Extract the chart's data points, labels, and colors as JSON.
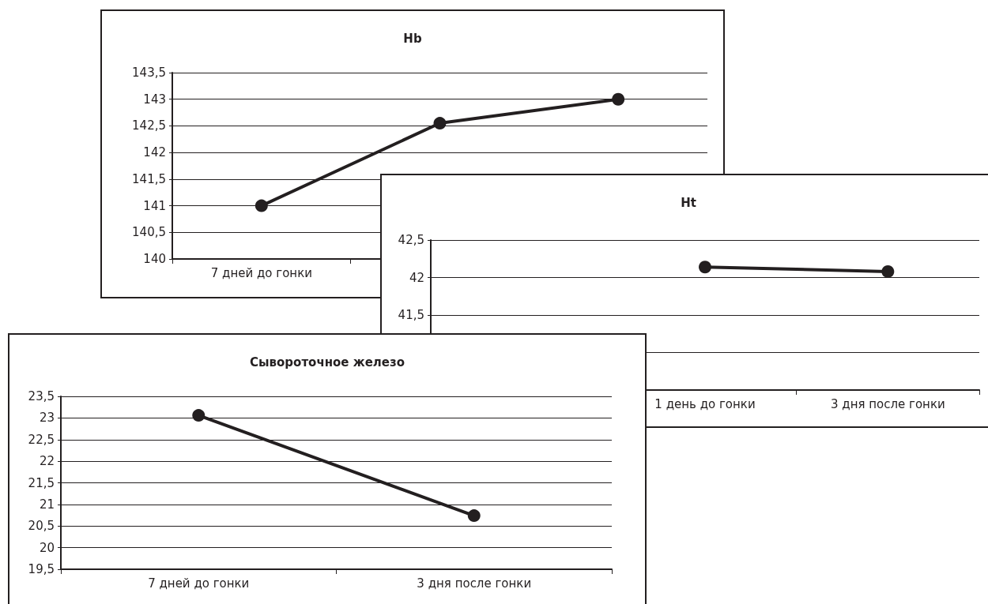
{
  "chart_data": [
    {
      "type": "line",
      "title": "Hb",
      "categories": [
        "7 дней до гонки",
        null,
        null
      ],
      "series": [
        {
          "color": "#231f20",
          "values": [
            141,
            142.55,
            143
          ]
        }
      ],
      "ylim": [
        140,
        143.5
      ],
      "yticks": [
        140,
        {
          "value": 140.5,
          "label": "140,5"
        },
        141,
        {
          "value": 141.5,
          "label": "141,5"
        },
        142,
        {
          "value": 142.5,
          "label": "142,5"
        },
        143,
        {
          "value": 143.5,
          "label": "143,5"
        }
      ],
      "grid": "y",
      "marker": "circle",
      "line_style": "solid"
    },
    {
      "type": "line",
      "title": "Ht",
      "categories": [
        null,
        "1 день до гонки",
        "3 дня после гонки"
      ],
      "series": [
        {
          "color": "#231f20",
          "values": [
            null,
            42.14,
            42.08
          ]
        }
      ],
      "ylim": [
        40.5,
        42.5
      ],
      "yticks": [
        {
          "value": 40.5,
          "label": null
        },
        {
          "value": 41,
          "label": null
        },
        {
          "value": 41.5,
          "label": "41,5"
        },
        42,
        {
          "value": 42.5,
          "label": "42,5"
        }
      ],
      "grid": "y",
      "marker": "circle",
      "line_style": "solid"
    },
    {
      "type": "line",
      "title": "Сывороточное железо",
      "categories": [
        "7 дней до гонки",
        "3 дня после гонки"
      ],
      "series": [
        {
          "color": "#231f20",
          "values": [
            23.06,
            20.74
          ]
        }
      ],
      "ylim": [
        19.5,
        23.5
      ],
      "yticks": [
        {
          "value": 19.5,
          "label": "19,5"
        },
        20,
        {
          "value": 20.5,
          "label": "20,5"
        },
        21,
        {
          "value": 21.5,
          "label": "21,5"
        },
        22,
        {
          "value": 22.5,
          "label": "22,5"
        },
        23,
        {
          "value": 23.5,
          "label": "23,5"
        }
      ],
      "grid": "y",
      "marker": "circle",
      "line_style": "solid"
    }
  ]
}
